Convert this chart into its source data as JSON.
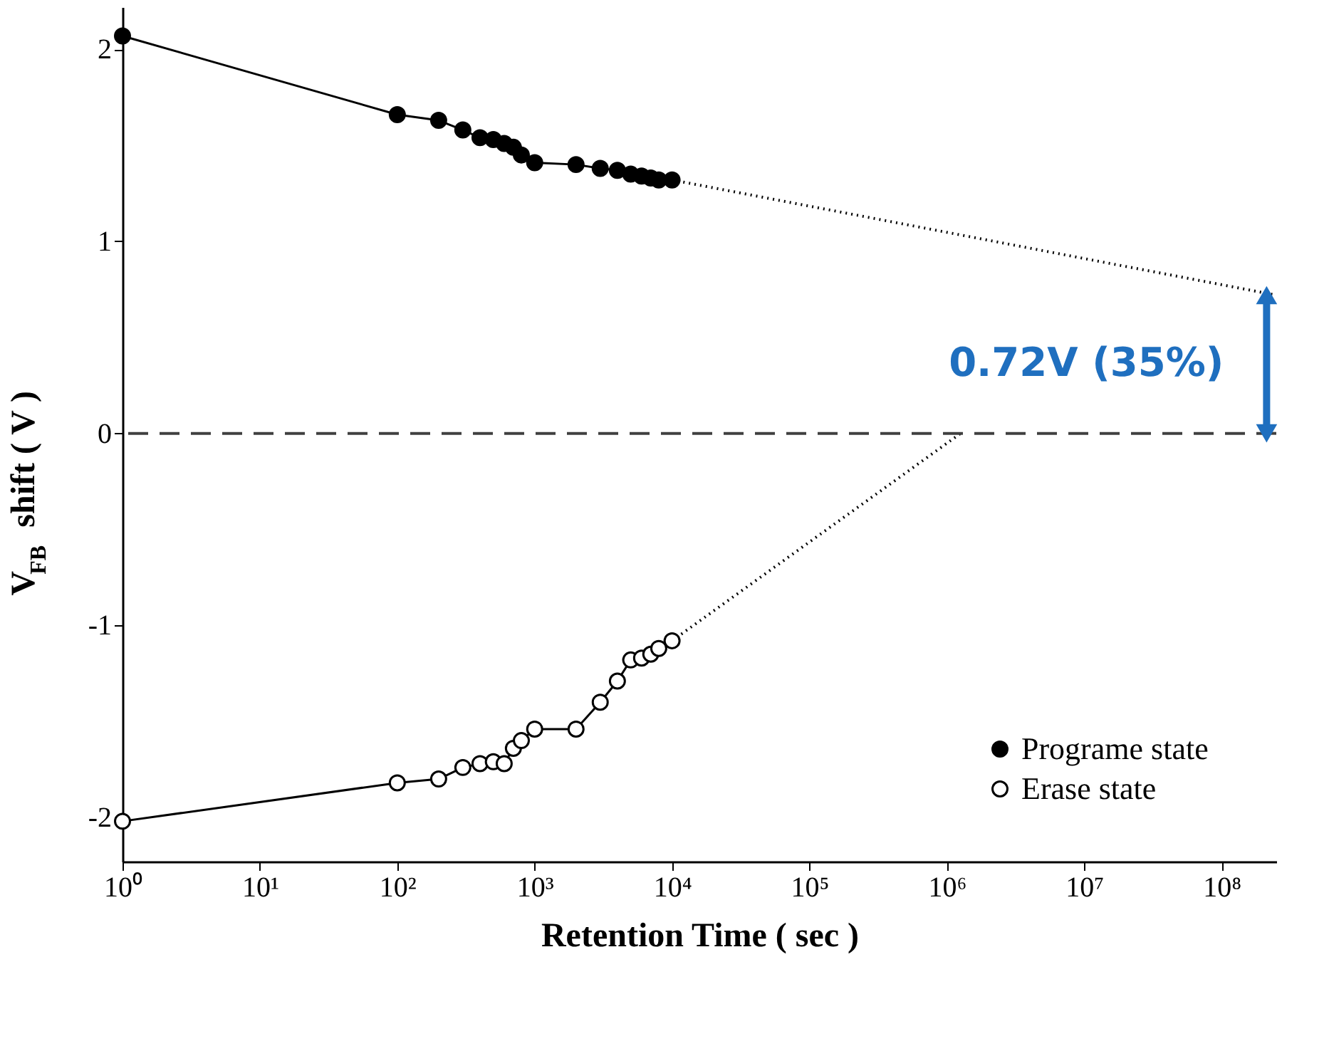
{
  "chart_data": {
    "type": "line",
    "xlabel": "Retention Time ( sec )",
    "ylabel": "V$_{FB}$ shift ( V )",
    "log": "x",
    "xlim": [
      1,
      250000000
    ],
    "ylim": [
      -2.23,
      2.22
    ],
    "xticks": [
      {
        "value": 1,
        "label": "10⁰"
      },
      {
        "value": 10,
        "label": "10¹"
      },
      {
        "value": 100,
        "label": "10²"
      },
      {
        "value": 1000,
        "label": "10³"
      },
      {
        "value": 10000,
        "label": "10⁴"
      },
      {
        "value": 100000,
        "label": "10⁵"
      },
      {
        "value": 1000000,
        "label": "10⁶"
      },
      {
        "value": 10000000,
        "label": "10⁷"
      },
      {
        "value": 100000000,
        "label": "10⁸"
      }
    ],
    "yticks": [
      -2,
      -1,
      0,
      1,
      2
    ],
    "grid": false,
    "legend": "bottom right",
    "marker": "circle",
    "line_style": "solid",
    "series": [
      {
        "name": "Programe state",
        "color": "#000000",
        "x": [
          1,
          100,
          200,
          300,
          400,
          500,
          600,
          700,
          800,
          1000,
          2000,
          3000,
          4000,
          5000,
          6000,
          7000,
          8000,
          10000
        ],
        "values": [
          2.07,
          1.66,
          1.63,
          1.58,
          1.54,
          1.53,
          1.51,
          1.49,
          1.45,
          1.41,
          1.4,
          1.38,
          1.37,
          1.35,
          1.34,
          1.33,
          1.32,
          1.32
        ]
      },
      {
        "name": "Erase         state",
        "color": "#000000",
        "x": [
          1,
          100,
          200,
          300,
          400,
          500,
          600,
          700,
          800,
          1000,
          2000,
          3000,
          4000,
          5000,
          6000,
          7000,
          8000,
          10000
        ],
        "values": [
          -2.02,
          -1.82,
          -1.8,
          -1.74,
          -1.72,
          -1.71,
          -1.72,
          -1.64,
          -1.6,
          -1.54,
          -1.54,
          -1.4,
          -1.29,
          -1.18,
          -1.17,
          -1.15,
          -1.12,
          -1.08
        ]
      },
      {
        "type": "line",
        "color": "#000000",
        "line_style": "dotted",
        "marker": "none",
        "x": [
          10000,
          250000000
        ],
        "values": [
          1.32,
          0.72
        ]
      },
      {
        "type": "line",
        "color": "#000000",
        "line_style": "dotted",
        "marker": "none",
        "x": [
          10000,
          1260000
        ],
        "values": [
          -1.08,
          0
        ]
      }
    ],
    "ref_lines": [
      {
        "axis": "y",
        "value": 0,
        "color": "#404040",
        "line_style": "dashed"
      }
    ],
    "annotations": [
      "0.72V (35%)"
    ]
  }
}
